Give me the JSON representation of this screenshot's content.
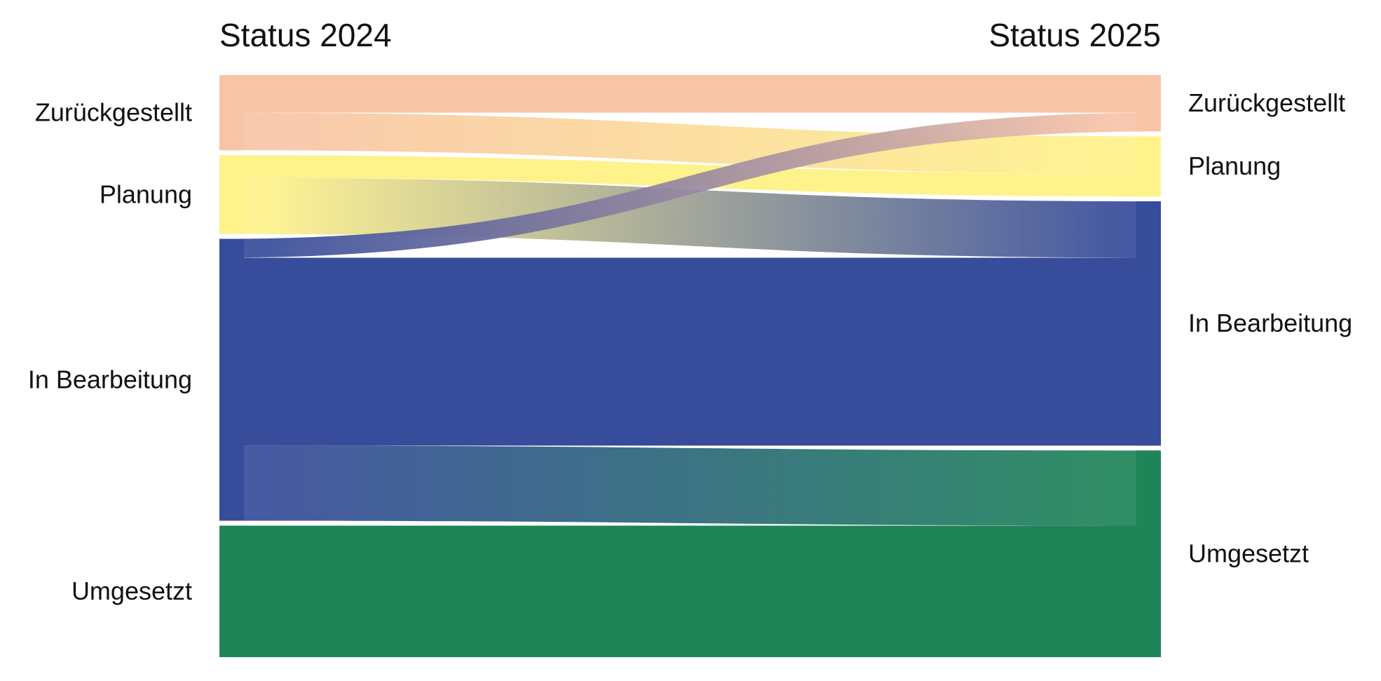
{
  "chart_data": {
    "type": "sankey",
    "columns": {
      "left": "Status 2024",
      "right": "Status 2025"
    },
    "nodes": [
      {
        "id": "zur",
        "label": "Zurückgestellt",
        "color": "#f8c4a7"
      },
      {
        "id": "pla",
        "label": "Planung",
        "color": "#fef28b"
      },
      {
        "id": "bea",
        "label": "In Bearbeitung",
        "color": "#374c9a"
      },
      {
        "id": "umg",
        "label": "Umgesetzt",
        "color": "#1f8458"
      }
    ],
    "links": [
      {
        "source": "zur",
        "target": "zur",
        "value": 5
      },
      {
        "source": "zur",
        "target": "pla",
        "value": 5
      },
      {
        "source": "pla",
        "target": "pla",
        "value": 3
      },
      {
        "source": "pla",
        "target": "bea",
        "value": 7.5
      },
      {
        "source": "bea",
        "target": "zur",
        "value": 2.5
      },
      {
        "source": "bea",
        "target": "bea",
        "value": 25
      },
      {
        "source": "bea",
        "target": "umg",
        "value": 10
      },
      {
        "source": "umg",
        "target": "umg",
        "value": 17.5
      }
    ]
  }
}
